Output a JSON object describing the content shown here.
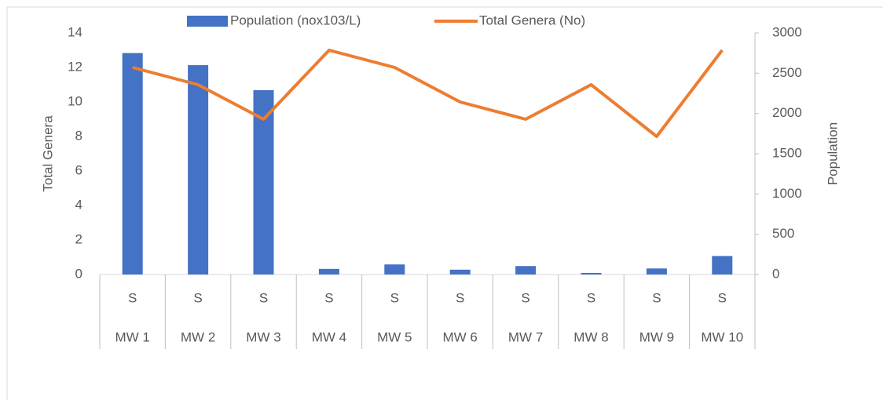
{
  "chart_data": {
    "type": "bar_line",
    "categories": [
      "MW 1",
      "MW 2",
      "MW 3",
      "MW 4",
      "MW 5",
      "MW 6",
      "MW 7",
      "MW 8",
      "MW 9",
      "MW 10"
    ],
    "subcategories": [
      "S",
      "S",
      "S",
      "S",
      "S",
      "S",
      "S",
      "S",
      "S",
      "S"
    ],
    "series": [
      {
        "name": "Population (nox103/L)",
        "type": "bar",
        "axis": "y2",
        "color": "#4472c4",
        "values": [
          2750,
          2600,
          2290,
          70,
          125,
          60,
          105,
          20,
          75,
          230
        ]
      },
      {
        "name": "Total Genera (No)",
        "type": "line",
        "axis": "y",
        "color": "#ed7d31",
        "values": [
          12,
          11,
          9,
          13,
          12,
          10,
          9,
          11,
          8,
          13
        ]
      }
    ],
    "ylabel": "Total Genera",
    "y2label": "Population",
    "ylim": [
      0,
      14
    ],
    "yticks": [
      0,
      2,
      4,
      6,
      8,
      10,
      12,
      14
    ],
    "y2lim": [
      0,
      3000
    ],
    "y2ticks": [
      0,
      500,
      1000,
      1500,
      2000,
      2500,
      3000
    ],
    "legend": "top"
  }
}
